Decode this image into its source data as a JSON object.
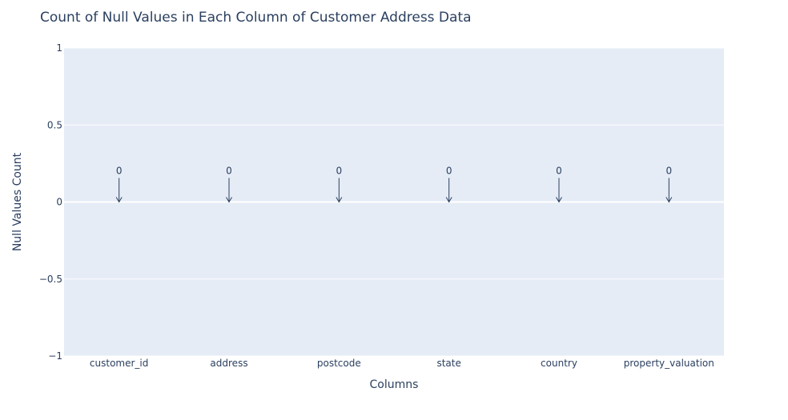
{
  "chart_data": {
    "type": "bar",
    "title": "Count of Null Values in Each Column of Customer Address Data",
    "xlabel": "Columns",
    "ylabel": "Null Values Count",
    "categories": [
      "customer_id",
      "address",
      "postcode",
      "state",
      "country",
      "property_valuation"
    ],
    "values": [
      0,
      0,
      0,
      0,
      0,
      0
    ],
    "data_labels": [
      "0",
      "0",
      "0",
      "0",
      "0",
      "0"
    ],
    "ylim": [
      -1,
      1
    ],
    "yticks": [
      1,
      0.5,
      0,
      -0.5,
      -1
    ],
    "ytick_labels": [
      "1",
      "0.5",
      "0",
      "−0.5",
      "−1"
    ],
    "grid": true,
    "colors": {
      "plot_bg": "#e5ecf6",
      "grid": "#ffffff",
      "text": "#2a3f5f",
      "arrow": "#2a3f5f"
    }
  }
}
